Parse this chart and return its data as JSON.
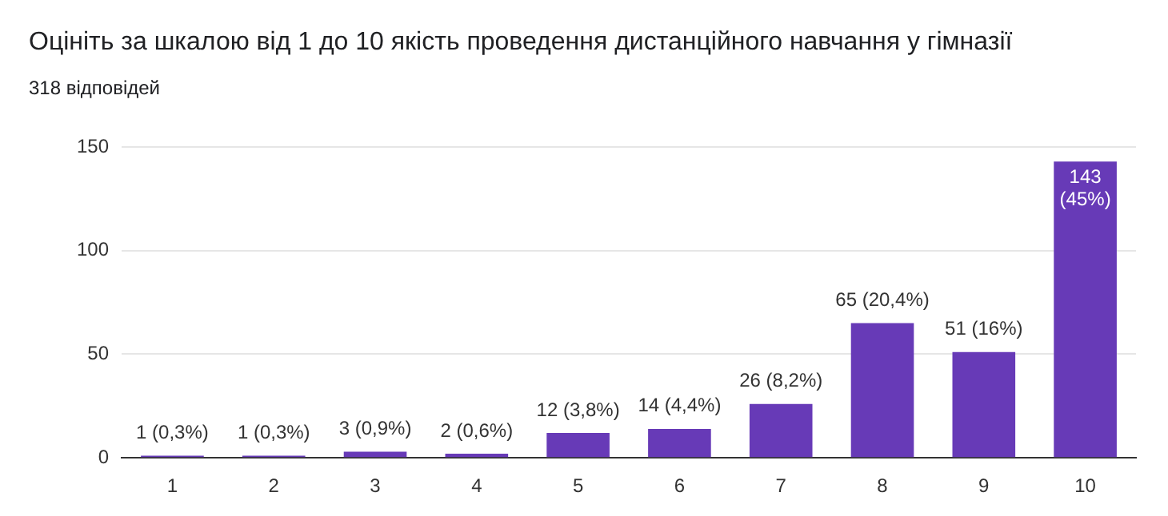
{
  "chart_data": {
    "type": "bar",
    "title": "Оцініть за шкалою від 1 до 10 якість проведення дистанційного навчання у гімназії",
    "subtitle": "318 відповідей",
    "categories": [
      "1",
      "2",
      "3",
      "4",
      "5",
      "6",
      "7",
      "8",
      "9",
      "10"
    ],
    "values": [
      1,
      1,
      3,
      2,
      12,
      14,
      26,
      65,
      51,
      143
    ],
    "value_labels": [
      "1 (0,3%)",
      "1 (0,3%)",
      "3 (0,9%)",
      "2 (0,6%)",
      "12 (3,8%)",
      "14 (4,4%)",
      "26 (8,2%)",
      "65 (20,4%)",
      "51 (16%)",
      "143 (45%)"
    ],
    "color": "#673ab7",
    "ylim": [
      0,
      150
    ],
    "yticks": [
      0,
      50,
      100,
      150
    ],
    "grid": "y",
    "legend": false
  }
}
